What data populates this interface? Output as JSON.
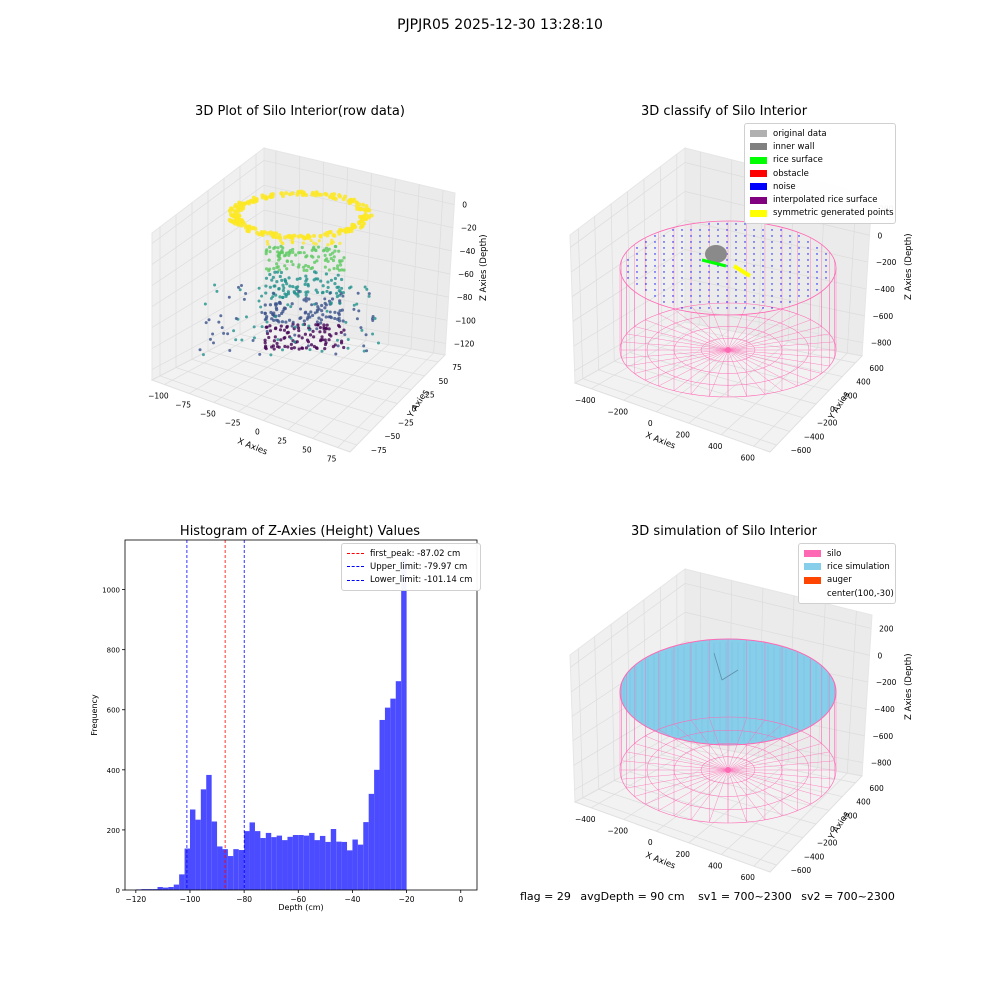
{
  "suptitle": "PJPJR05 2025-12-30 13:28:10",
  "status": {
    "flag": "flag = 29",
    "avg_depth": "avgDepth = 90 cm",
    "sv1": "sv1 = 700~2300",
    "sv2": "sv2 = 700~2300"
  },
  "chart_data": [
    {
      "type": "scatter",
      "title": "3D Plot of Silo Interior(row data)",
      "xlabel": "X Axies",
      "ylabel": "Y Axies",
      "zlabel": "Z Axies (Depth)",
      "x_ticks": [
        "−100",
        "−75",
        "−50",
        "−25",
        "0",
        "25",
        "50",
        "75"
      ],
      "y_ticks": [
        "−75",
        "−50",
        "−25",
        "0",
        "25",
        "50",
        "75"
      ],
      "z_ticks": [
        "0",
        "−20",
        "−40",
        "−60",
        "−80",
        "−100",
        "−120"
      ],
      "colormap": "viridis"
    },
    {
      "type": "scatter",
      "title": "3D classify of Silo Interior",
      "xlabel": "X Axies",
      "ylabel": "Y Axies",
      "zlabel": "Z Axies (Depth)",
      "x_ticks": [
        "−400",
        "−200",
        "0",
        "200",
        "400",
        "600"
      ],
      "y_ticks": [
        "−600",
        "−400",
        "−200",
        "0",
        "200",
        "400",
        "600"
      ],
      "z_ticks": [
        "200",
        "0",
        "−200",
        "−400",
        "−600",
        "−800"
      ],
      "legend": [
        {
          "label": "original data",
          "color": "#b0b0b0"
        },
        {
          "label": "inner wall",
          "color": "#808080"
        },
        {
          "label": "rice surface",
          "color": "#00ff00"
        },
        {
          "label": "obstacle",
          "color": "#ff0000"
        },
        {
          "label": "noise",
          "color": "#0000ff"
        },
        {
          "label": "interpolated rice surface",
          "color": "#800080"
        },
        {
          "label": "symmetric generated points",
          "color": "#ffff00"
        }
      ]
    },
    {
      "type": "bar",
      "title": "Histogram of Z-Axies (Height) Values",
      "xlabel": "Depth (cm)",
      "ylabel": "Frequency",
      "xlim": [
        -124,
        6
      ],
      "ylim": [
        0,
        1165
      ],
      "x_ticks": [
        -120,
        -100,
        -80,
        -60,
        -40,
        -20,
        0
      ],
      "y_ticks": [
        0,
        200,
        400,
        600,
        800,
        1000
      ],
      "bar_color": "#4b4bff",
      "bin_start": -120,
      "bin_width": 2,
      "values": [
        2,
        3,
        3,
        3,
        10,
        8,
        10,
        18,
        52,
        138,
        268,
        234,
        335,
        383,
        228,
        145,
        136,
        113,
        136,
        133,
        196,
        225,
        196,
        173,
        190,
        176,
        181,
        166,
        177,
        183,
        183,
        181,
        190,
        166,
        180,
        160,
        203,
        161,
        160,
        132,
        168,
        151,
        226,
        320,
        400,
        566,
        607,
        637,
        695,
        1115
      ],
      "vlines": [
        {
          "label": "first_peak: -87.02 cm",
          "x": -87.02,
          "color": "#ff0000"
        },
        {
          "label": "Upper_limit: -79.97 cm",
          "x": -79.97,
          "color": "#0000ff"
        },
        {
          "label": "Lower_limit: -101.14 cm",
          "x": -101.14,
          "color": "#0000ff"
        }
      ]
    },
    {
      "type": "scatter",
      "title": "3D simulation of Silo Interior",
      "xlabel": "X Axies",
      "ylabel": "Y Axies",
      "zlabel": "Z Axies (Depth)",
      "x_ticks": [
        "−400",
        "−200",
        "0",
        "200",
        "400",
        "600"
      ],
      "y_ticks": [
        "−600",
        "−400",
        "−200",
        "0",
        "200",
        "400",
        "600"
      ],
      "z_ticks": [
        "200",
        "0",
        "−200",
        "−400",
        "−600",
        "−800"
      ],
      "legend": [
        {
          "label": "silo",
          "color": "#ff69b4"
        },
        {
          "label": "rice simulation",
          "color": "#87ceeb"
        },
        {
          "label": "auger",
          "color": "#ff4500"
        },
        {
          "label": "center(100,-30)",
          "color": ""
        }
      ]
    }
  ]
}
